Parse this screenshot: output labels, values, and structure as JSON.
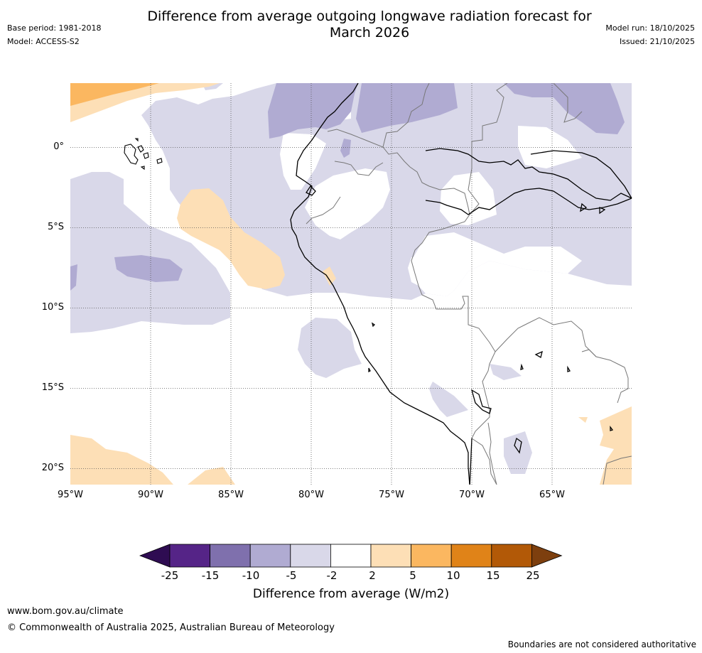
{
  "header": {
    "title_line1": "Difference from average outgoing longwave radiation forecast for",
    "title_line2": "March 2026",
    "base_period": "Base period: 1981-2018",
    "model": "Model: ACCESS-S2",
    "model_run": "Model run: 18/10/2025",
    "issued": "Issued: 21/10/2025"
  },
  "map": {
    "latitude_labels": [
      "0°",
      "5°S",
      "10°S",
      "15°S",
      "20°S"
    ],
    "longitude_labels": [
      "95°W",
      "90°W",
      "85°W",
      "80°W",
      "75°W",
      "70°W",
      "65°W"
    ],
    "lon_range": [
      -95,
      -60
    ],
    "lat_range": [
      -21,
      4
    ]
  },
  "colorbar": {
    "title": "Difference from average (W/m2)",
    "ticks": [
      "-25",
      "-15",
      "-10",
      "-5",
      "-2",
      "2",
      "5",
      "10",
      "15",
      "25"
    ],
    "colors": [
      "#2e0c52",
      "#552487",
      "#7f70ad",
      "#b0abd2",
      "#d9d8e9",
      "#ffffff",
      "#fddfb6",
      "#fbb760",
      "#e08318",
      "#b25907",
      "#7d3f0e"
    ]
  },
  "footer": {
    "url": "www.bom.gov.au/climate",
    "copyright": "© Commonwealth of Australia 2025, Australian Bureau of Meteorology",
    "disclaimer": "Boundaries are not considered authoritative"
  }
}
